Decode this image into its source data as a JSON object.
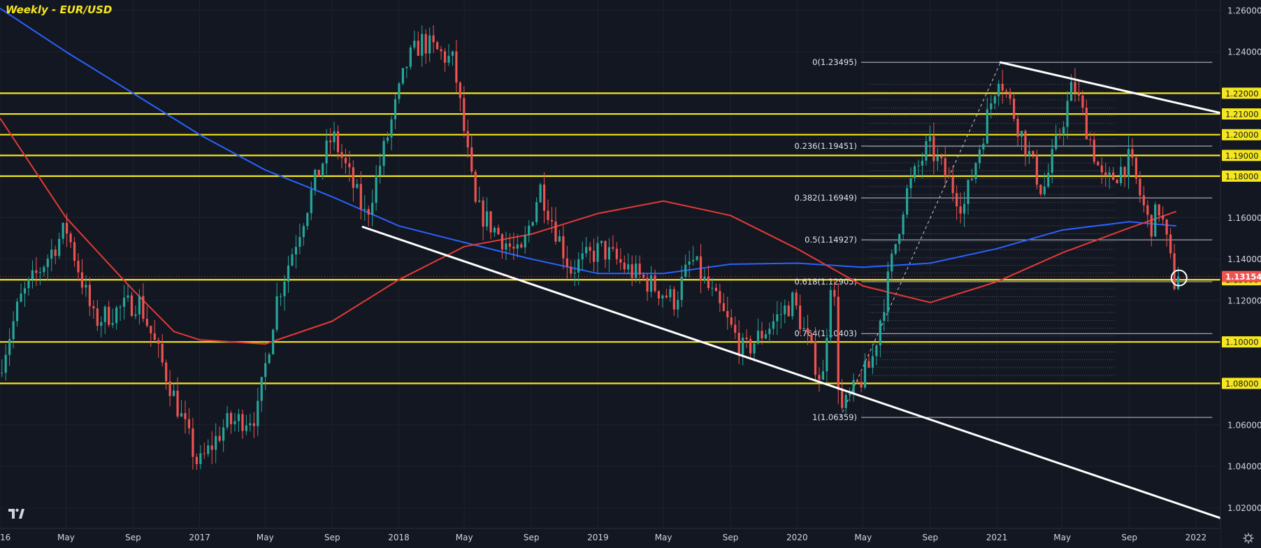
{
  "header": {
    "title": "Weekly - EUR/USD"
  },
  "colors": {
    "background": "#131722",
    "bull": "#26a69a",
    "bear": "#ef5350",
    "ma_fast": "#2962ff",
    "ma_slow": "#e53935",
    "level": "#f5e61e",
    "trendline": "#ffffff",
    "current_price": "#ef5350"
  },
  "icons": {
    "logo": "tradingview-logo-icon",
    "settings": "gear-icon"
  },
  "chart_data": {
    "type": "candlestick",
    "symbol": "EUR/USD",
    "timeframe": "Weekly",
    "ylim": [
      1.01,
      1.265
    ],
    "xlim": [
      "2016-01-01",
      "2022-02-15"
    ],
    "current_price": 1.13154,
    "y_ticks": [
      "1.26000",
      "1.24000",
      "1.22000",
      "1.21000",
      "1.20000",
      "1.19000",
      "1.18000",
      "1.16000",
      "1.14000",
      "1.13154",
      "1.13000",
      "1.12000",
      "1.10000",
      "1.08000",
      "1.06000",
      "1.04000",
      "1.02000"
    ],
    "x_ticks": [
      {
        "label": "16",
        "date": "2016-01-01"
      },
      {
        "label": "May",
        "date": "2016-05-01"
      },
      {
        "label": "Sep",
        "date": "2016-09-01"
      },
      {
        "label": "2017",
        "date": "2017-01-01"
      },
      {
        "label": "May",
        "date": "2017-05-01"
      },
      {
        "label": "Sep",
        "date": "2017-09-01"
      },
      {
        "label": "2018",
        "date": "2018-01-01"
      },
      {
        "label": "May",
        "date": "2018-05-01"
      },
      {
        "label": "Sep",
        "date": "2018-09-01"
      },
      {
        "label": "2019",
        "date": "2019-01-01"
      },
      {
        "label": "May",
        "date": "2019-05-01"
      },
      {
        "label": "Sep",
        "date": "2019-09-01"
      },
      {
        "label": "2020",
        "date": "2020-01-01"
      },
      {
        "label": "May",
        "date": "2020-05-01"
      },
      {
        "label": "Sep",
        "date": "2020-09-01"
      },
      {
        "label": "2021",
        "date": "2021-01-01"
      },
      {
        "label": "May",
        "date": "2021-05-01"
      },
      {
        "label": "Sep",
        "date": "2021-09-01"
      },
      {
        "label": "2022",
        "date": "2022-01-01"
      }
    ],
    "horizontal_levels": [
      1.22,
      1.21,
      1.2,
      1.19,
      1.18,
      1.13,
      1.1,
      1.08
    ],
    "fibonacci": [
      {
        "label": "0(1.23495)",
        "price": 1.23495
      },
      {
        "label": "0.236(1.19451)",
        "price": 1.19451
      },
      {
        "label": "0.382(1.16949)",
        "price": 1.16949
      },
      {
        "label": "0.5(1.14927)",
        "price": 1.14927
      },
      {
        "label": "0.618(1.12905)",
        "price": 1.12905
      },
      {
        "label": "0.764(1.10403)",
        "price": 1.10403
      },
      {
        "label": "1(1.06359)",
        "price": 1.06359
      }
    ],
    "fib_span": {
      "start": "2020-03-20",
      "end": "2022-01-31",
      "from_price": 1.06359,
      "to_price": 1.23495
    },
    "trendlines": [
      {
        "from": {
          "date": "2017-10-27",
          "price": 1.1555
        },
        "to": {
          "date": "2022-02-15",
          "price": 1.015
        }
      },
      {
        "from": {
          "date": "2021-01-08",
          "price": 1.2349
        },
        "to": {
          "date": "2022-02-15",
          "price": 1.2105
        }
      }
    ],
    "ma_fast": [
      {
        "date": "2016-01-01",
        "price": 1.261
      },
      {
        "date": "2016-05-01",
        "price": 1.24
      },
      {
        "date": "2016-09-01",
        "price": 1.22
      },
      {
        "date": "2017-01-01",
        "price": 1.2
      },
      {
        "date": "2017-05-01",
        "price": 1.183
      },
      {
        "date": "2017-09-01",
        "price": 1.17
      },
      {
        "date": "2018-01-01",
        "price": 1.156
      },
      {
        "date": "2018-05-01",
        "price": 1.148
      },
      {
        "date": "2018-09-01",
        "price": 1.14
      },
      {
        "date": "2019-01-01",
        "price": 1.133
      },
      {
        "date": "2019-05-01",
        "price": 1.133
      },
      {
        "date": "2019-09-01",
        "price": 1.1375
      },
      {
        "date": "2020-01-01",
        "price": 1.138
      },
      {
        "date": "2020-05-01",
        "price": 1.136
      },
      {
        "date": "2020-09-01",
        "price": 1.138
      },
      {
        "date": "2021-01-01",
        "price": 1.145
      },
      {
        "date": "2021-05-01",
        "price": 1.154
      },
      {
        "date": "2021-09-01",
        "price": 1.158
      },
      {
        "date": "2021-11-26",
        "price": 1.156
      }
    ],
    "ma_slow": [
      {
        "date": "2016-01-01",
        "price": 1.208
      },
      {
        "date": "2016-05-01",
        "price": 1.16
      },
      {
        "date": "2016-09-01",
        "price": 1.125
      },
      {
        "date": "2016-11-15",
        "price": 1.105
      },
      {
        "date": "2017-01-01",
        "price": 1.101
      },
      {
        "date": "2017-05-01",
        "price": 1.099
      },
      {
        "date": "2017-09-01",
        "price": 1.11
      },
      {
        "date": "2018-01-01",
        "price": 1.13
      },
      {
        "date": "2018-05-01",
        "price": 1.146
      },
      {
        "date": "2018-09-01",
        "price": 1.152
      },
      {
        "date": "2019-01-01",
        "price": 1.162
      },
      {
        "date": "2019-05-01",
        "price": 1.168
      },
      {
        "date": "2019-09-01",
        "price": 1.161
      },
      {
        "date": "2020-01-01",
        "price": 1.145
      },
      {
        "date": "2020-05-01",
        "price": 1.127
      },
      {
        "date": "2020-09-01",
        "price": 1.119
      },
      {
        "date": "2021-01-01",
        "price": 1.129
      },
      {
        "date": "2021-05-01",
        "price": 1.143
      },
      {
        "date": "2021-09-01",
        "price": 1.155
      },
      {
        "date": "2021-11-26",
        "price": 1.163
      }
    ],
    "price_path": [
      {
        "date": "2016-01-01",
        "price": 1.085
      },
      {
        "date": "2016-02-10",
        "price": 1.12
      },
      {
        "date": "2016-05-05",
        "price": 1.155
      },
      {
        "date": "2016-06-25",
        "price": 1.11
      },
      {
        "date": "2016-09-15",
        "price": 1.12
      },
      {
        "date": "2016-11-10",
        "price": 1.08
      },
      {
        "date": "2017-01-02",
        "price": 1.04
      },
      {
        "date": "2017-02-20",
        "price": 1.06
      },
      {
        "date": "2017-04-20",
        "price": 1.065
      },
      {
        "date": "2017-05-25",
        "price": 1.12
      },
      {
        "date": "2017-08-01",
        "price": 1.175
      },
      {
        "date": "2017-09-05",
        "price": 1.2
      },
      {
        "date": "2017-11-05",
        "price": 1.16
      },
      {
        "date": "2018-01-20",
        "price": 1.235
      },
      {
        "date": "2018-02-15",
        "price": 1.245
      },
      {
        "date": "2018-04-15",
        "price": 1.235
      },
      {
        "date": "2018-05-25",
        "price": 1.165
      },
      {
        "date": "2018-08-15",
        "price": 1.14
      },
      {
        "date": "2018-09-20",
        "price": 1.175
      },
      {
        "date": "2018-11-15",
        "price": 1.135
      },
      {
        "date": "2019-01-10",
        "price": 1.145
      },
      {
        "date": "2019-03-01",
        "price": 1.135
      },
      {
        "date": "2019-05-25",
        "price": 1.12
      },
      {
        "date": "2019-06-25",
        "price": 1.14
      },
      {
        "date": "2019-09-30",
        "price": 1.095
      },
      {
        "date": "2019-12-28",
        "price": 1.12
      },
      {
        "date": "2020-02-20",
        "price": 1.08
      },
      {
        "date": "2020-03-09",
        "price": 1.14
      },
      {
        "date": "2020-03-23",
        "price": 1.065
      },
      {
        "date": "2020-05-20",
        "price": 1.09
      },
      {
        "date": "2020-07-20",
        "price": 1.17
      },
      {
        "date": "2020-09-01",
        "price": 1.195
      },
      {
        "date": "2020-11-05",
        "price": 1.165
      },
      {
        "date": "2021-01-08",
        "price": 1.23
      },
      {
        "date": "2021-03-30",
        "price": 1.172
      },
      {
        "date": "2021-05-25",
        "price": 1.225
      },
      {
        "date": "2021-07-20",
        "price": 1.175
      },
      {
        "date": "2021-09-05",
        "price": 1.188
      },
      {
        "date": "2021-10-12",
        "price": 1.155
      },
      {
        "date": "2021-10-30",
        "price": 1.165
      },
      {
        "date": "2021-11-26",
        "price": 1.129
      }
    ]
  }
}
